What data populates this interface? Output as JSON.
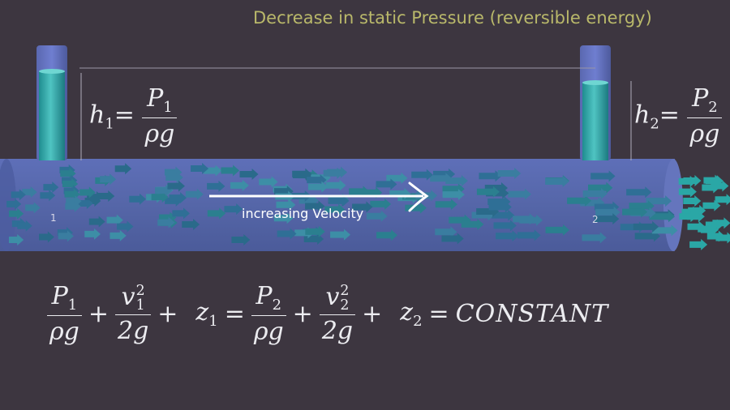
{
  "title": "Decrease in static Pressure (reversible energy)",
  "pipe": {
    "flow_label": "increasing Velocity",
    "point_1_label": "1",
    "point_2_label": "2"
  },
  "piezometer_1": {
    "head_symbol": "h",
    "subscript": "1",
    "numerator": "P",
    "numerator_sub": "1",
    "denominator": "ρg"
  },
  "piezometer_2": {
    "head_symbol": "h",
    "subscript": "2",
    "numerator": "P",
    "numerator_sub": "2",
    "denominator": "ρg"
  },
  "bernoulli": {
    "p1_num": "P",
    "p1_sub": "1",
    "p1_den": "ρg",
    "v1_num": "v",
    "v1_sup": "2",
    "v1_sub": "1",
    "v1_den": "2g",
    "z1": "z",
    "z1_sub": "1",
    "p2_num": "P",
    "p2_sub": "2",
    "p2_den": "ρg",
    "v2_num": "v",
    "v2_sup": "2",
    "v2_sub": "2",
    "v2_den": "2g",
    "z2": "z",
    "z2_sub": "2",
    "plus": "+",
    "equals": "=",
    "rhs": "CONSTANT"
  },
  "colors": {
    "background": "#3d3640",
    "pipe": "#5566a8",
    "liquid": "#2f9a9c",
    "arrows": "#2f8f9c",
    "title": "#b9b86a"
  }
}
